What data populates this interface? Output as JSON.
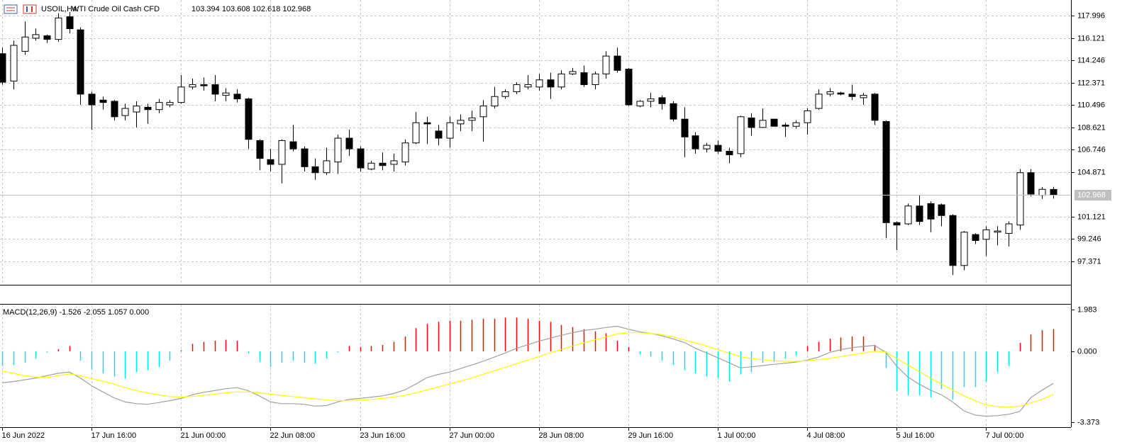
{
  "chart_data": [
    {
      "type": "candlestick",
      "symbol": "USOIL,H4:",
      "description": "WTI Crude Oil Cash CFD",
      "quote": "103.394 103.608 102.618 102.968",
      "categories": [
        "16 Jun 2022",
        null,
        null,
        null,
        null,
        null,
        null,
        null,
        "17 Jun 16:00",
        null,
        null,
        null,
        null,
        null,
        null,
        null,
        "21 Jun 00:00",
        null,
        null,
        null,
        null,
        null,
        null,
        null,
        "22 Jun 08:00",
        null,
        null,
        null,
        null,
        null,
        null,
        null,
        "23 Jun 16:00",
        null,
        null,
        null,
        null,
        null,
        null,
        null,
        "27 Jun 00:00",
        null,
        null,
        null,
        null,
        null,
        null,
        null,
        "28 Jun 08:00",
        null,
        null,
        null,
        null,
        null,
        null,
        null,
        "29 Jun 16:00",
        null,
        null,
        null,
        null,
        null,
        null,
        null,
        "1 Jul 00:00",
        null,
        null,
        null,
        null,
        null,
        null,
        null,
        "4 Jul 08:00",
        null,
        null,
        null,
        null,
        null,
        null,
        null,
        "5 Jul 16:00",
        null,
        null,
        null,
        null,
        null,
        null,
        null,
        "7 Jul 00:00",
        null,
        null,
        null,
        null,
        null,
        null
      ],
      "open": [
        114.8,
        112.5,
        115.0,
        116.1,
        116.3,
        116.0,
        117.9,
        116.8,
        111.4,
        110.9,
        110.8,
        109.6,
        109.9,
        110.3,
        110.1,
        110.5,
        110.7,
        112.0,
        112.2,
        112.2,
        111.3,
        111.4,
        111.0,
        107.5,
        105.9,
        105.5,
        107.4,
        106.8,
        105.3,
        104.8,
        105.7,
        107.7,
        106.8,
        105.1,
        105.6,
        105.5,
        105.7,
        107.3,
        109.0,
        108.3,
        107.7,
        108.9,
        109.2,
        109.5,
        110.4,
        111.2,
        111.6,
        112.0,
        112.0,
        112.6,
        112.0,
        113.1,
        113.2,
        112.2,
        113.1,
        114.6,
        113.5,
        110.4,
        110.8,
        111.1,
        110.6,
        109.3,
        107.9,
        106.8,
        107.1,
        106.6,
        106.4,
        109.4,
        108.6,
        109.3,
        108.8,
        108.7,
        109.0,
        110.2,
        111.4,
        111.5,
        111.4,
        111.1,
        111.4,
        109.1,
        100.6,
        100.5,
        102.0,
        102.2,
        102.1,
        101.2,
        97.0,
        99.6,
        99.2,
        99.8,
        99.7,
        100.4,
        104.8,
        102.9,
        103.394
      ],
      "high": [
        115.3,
        115.9,
        117.5,
        116.9,
        116.4,
        118.2,
        118.3,
        117.0,
        111.6,
        111.2,
        110.9,
        110.6,
        110.8,
        110.6,
        111.0,
        110.9,
        113.0,
        112.7,
        112.8,
        113.0,
        111.9,
        111.8,
        111.1,
        107.6,
        106.8,
        107.6,
        108.8,
        107.0,
        106.0,
        106.9,
        108.0,
        108.4,
        107.0,
        105.8,
        106.5,
        106.4,
        107.6,
        109.9,
        109.5,
        108.8,
        109.5,
        109.7,
        110.0,
        110.9,
        112.0,
        111.8,
        112.4,
        113.0,
        113.1,
        113.2,
        113.4,
        113.6,
        113.8,
        113.3,
        115.0,
        115.3,
        113.6,
        110.9,
        111.5,
        111.3,
        110.8,
        110.3,
        108.2,
        107.3,
        107.5,
        106.9,
        109.6,
        109.8,
        110.2,
        109.3,
        109.0,
        109.2,
        110.2,
        111.8,
        111.9,
        111.6,
        112.2,
        111.5,
        111.5,
        109.2,
        100.7,
        102.2,
        102.9,
        102.4,
        102.2,
        101.3,
        99.9,
        99.7,
        100.3,
        100.3,
        100.7,
        105.1,
        105.1,
        103.6,
        103.608
      ],
      "low": [
        112.2,
        111.8,
        114.7,
        115.9,
        115.7,
        115.8,
        116.5,
        110.5,
        108.4,
        110.1,
        109.2,
        109.2,
        108.6,
        108.9,
        109.8,
        110.3,
        110.6,
        111.8,
        111.7,
        110.8,
        110.8,
        110.7,
        106.8,
        105.0,
        104.9,
        103.9,
        106.6,
        104.9,
        104.2,
        104.6,
        104.7,
        106.2,
        104.9,
        105.0,
        105.0,
        104.9,
        105.4,
        107.2,
        107.2,
        107.1,
        106.9,
        108.3,
        108.3,
        107.4,
        110.2,
        111.0,
        111.4,
        111.8,
        111.7,
        111.0,
        111.8,
        113.0,
        112.0,
        111.8,
        112.7,
        113.2,
        110.4,
        110.3,
        110.3,
        110.1,
        109.1,
        106.1,
        106.4,
        106.5,
        106.4,
        105.6,
        106.1,
        107.9,
        108.6,
        108.7,
        107.8,
        108.5,
        108.0,
        110.1,
        111.2,
        111.3,
        110.9,
        110.5,
        108.8,
        99.3,
        98.3,
        100.4,
        100.4,
        99.8,
        100.3,
        96.2,
        96.6,
        98.8,
        97.8,
        98.7,
        98.6,
        100.0,
        102.8,
        102.6,
        102.618
      ],
      "close": [
        112.4,
        115.5,
        116.2,
        116.4,
        116.0,
        117.8,
        116.9,
        111.4,
        110.5,
        110.7,
        109.5,
        110.2,
        110.4,
        110.1,
        110.7,
        110.7,
        112.0,
        112.2,
        112.1,
        111.4,
        111.5,
        111.0,
        107.6,
        106.0,
        105.5,
        107.5,
        106.8,
        105.3,
        104.8,
        105.8,
        107.7,
        106.8,
        105.2,
        105.6,
        105.4,
        105.8,
        107.3,
        109.0,
        108.9,
        107.7,
        109.0,
        109.2,
        109.4,
        110.4,
        111.2,
        111.6,
        112.2,
        112.2,
        112.6,
        112.0,
        113.1,
        113.3,
        112.2,
        113.1,
        114.6,
        113.4,
        110.5,
        110.8,
        111.0,
        110.6,
        109.3,
        107.8,
        106.8,
        107.1,
        106.6,
        106.3,
        109.5,
        108.6,
        109.2,
        108.7,
        108.7,
        109.0,
        110.0,
        111.4,
        111.6,
        111.4,
        111.2,
        111.3,
        109.2,
        100.6,
        100.4,
        102.0,
        100.7,
        100.9,
        101.2,
        97.0,
        99.8,
        99.1,
        100.0,
        99.9,
        100.5,
        104.8,
        103.0,
        103.4,
        102.968
      ],
      "up_color": "#ffffff",
      "down_color": "#000000",
      "line_color": "#000000",
      "ylim": [
        95.38,
        119.31
      ],
      "yticks": [
        117.996,
        116.121,
        114.246,
        112.371,
        110.496,
        108.621,
        106.746,
        104.871,
        101.121,
        99.246,
        97.371
      ],
      "last_price": 102.968,
      "last_price_color": "#c0c0c0",
      "grid": true
    },
    {
      "type": "macd",
      "title": "MACD(12,26,9) -1.526 -2.055 1.057 0.000",
      "series": [
        {
          "type": "bar",
          "color": "#00e5ee",
          "up_color": "#ff0000",
          "values": [
            -0.7,
            -0.65,
            -0.55,
            -0.35,
            -0.05,
            0.1,
            0.25,
            -0.45,
            -0.85,
            -1.05,
            -1.2,
            -1.3,
            -1.0,
            -0.9,
            -0.75,
            -0.45,
            0.05,
            0.35,
            0.45,
            0.5,
            0.55,
            0.5,
            -0.1,
            -0.5,
            -0.75,
            -0.55,
            -0.45,
            -0.55,
            -0.6,
            -0.35,
            -0.05,
            0.25,
            0.2,
            0.25,
            0.3,
            0.45,
            0.7,
            1.1,
            1.3,
            1.4,
            1.45,
            1.45,
            1.5,
            1.55,
            1.55,
            1.6,
            1.6,
            1.55,
            1.45,
            1.4,
            1.25,
            1.15,
            1.05,
            0.95,
            0.85,
            0.5,
            0.2,
            -0.15,
            -0.25,
            -0.45,
            -0.65,
            -0.9,
            -1.05,
            -1.2,
            -1.25,
            -1.45,
            -1.1,
            -1.0,
            -0.55,
            -0.5,
            -0.35,
            -0.2,
            0.25,
            0.45,
            0.6,
            0.65,
            0.7,
            0.7,
            0.3,
            -0.8,
            -1.9,
            -2.1,
            -2.1,
            -2.2,
            -1.8,
            -2.3,
            -1.7,
            -1.7,
            -1.45,
            -1.0,
            -0.7,
            0.4,
            0.8,
            1.0,
            1.057
          ]
        },
        {
          "type": "line",
          "color": "#a0a0a0",
          "values": [
            -1.5,
            -1.44,
            -1.36,
            -1.27,
            -1.16,
            -1.05,
            -0.99,
            -1.27,
            -1.64,
            -1.93,
            -2.21,
            -2.41,
            -2.49,
            -2.52,
            -2.44,
            -2.35,
            -2.24,
            -2.07,
            -1.95,
            -1.87,
            -1.78,
            -1.73,
            -1.87,
            -2.12,
            -2.41,
            -2.49,
            -2.49,
            -2.52,
            -2.61,
            -2.58,
            -2.41,
            -2.29,
            -2.24,
            -2.18,
            -2.12,
            -2.01,
            -1.84,
            -1.56,
            -1.25,
            -1.1,
            -0.99,
            -0.82,
            -0.65,
            -0.48,
            -0.28,
            -0.08,
            0.14,
            0.31,
            0.48,
            0.62,
            0.76,
            0.88,
            0.99,
            1.05,
            1.13,
            1.19,
            1.05,
            0.93,
            0.85,
            0.74,
            0.59,
            0.42,
            0.14,
            -0.08,
            -0.31,
            -0.54,
            -0.79,
            -0.74,
            -0.68,
            -0.62,
            -0.57,
            -0.51,
            -0.42,
            -0.28,
            -0.06,
            0.08,
            0.17,
            0.23,
            0.28,
            -0.03,
            -0.71,
            -1.22,
            -1.56,
            -1.84,
            -2.07,
            -2.41,
            -2.83,
            -3.03,
            -3.09,
            -3.06,
            -3.0,
            -2.86,
            -2.2,
            -1.85,
            -1.526
          ]
        },
        {
          "type": "line",
          "color": "#ffff00",
          "values": [
            -0.94,
            -1.05,
            -1.16,
            -1.22,
            -1.25,
            -1.16,
            -1.08,
            -1.16,
            -1.3,
            -1.42,
            -1.56,
            -1.73,
            -1.87,
            -1.98,
            -2.07,
            -2.15,
            -2.18,
            -2.15,
            -2.1,
            -2.04,
            -1.98,
            -1.93,
            -1.93,
            -1.98,
            -2.04,
            -2.1,
            -2.15,
            -2.21,
            -2.26,
            -2.32,
            -2.35,
            -2.35,
            -2.32,
            -2.29,
            -2.24,
            -2.18,
            -2.1,
            -1.98,
            -1.84,
            -1.7,
            -1.56,
            -1.42,
            -1.27,
            -1.1,
            -0.93,
            -0.76,
            -0.59,
            -0.42,
            -0.25,
            -0.08,
            0.08,
            0.25,
            0.4,
            0.54,
            0.68,
            0.82,
            0.88,
            0.88,
            0.85,
            0.79,
            0.68,
            0.54,
            0.4,
            0.25,
            0.08,
            -0.08,
            -0.25,
            -0.34,
            -0.4,
            -0.45,
            -0.48,
            -0.48,
            -0.45,
            -0.4,
            -0.34,
            -0.25,
            -0.17,
            -0.08,
            0.0,
            -0.03,
            -0.34,
            -0.65,
            -0.96,
            -1.27,
            -1.56,
            -1.84,
            -2.12,
            -2.35,
            -2.55,
            -2.63,
            -2.66,
            -2.61,
            -2.46,
            -2.29,
            -2.055
          ]
        }
      ],
      "ylim": [
        -3.373,
        1.983
      ],
      "yticks": [
        1.983,
        {
          "value": 0,
          "label": "0.000"
        },
        -3.373
      ]
    }
  ]
}
